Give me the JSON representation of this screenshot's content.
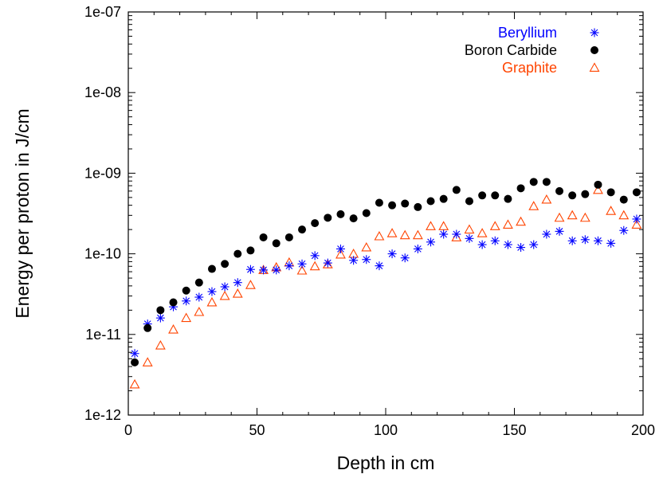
{
  "chart_data": {
    "type": "scatter",
    "title": "",
    "xlabel": "Depth in cm",
    "ylabel": "Energy per proton in J/cm",
    "xlim": [
      0,
      200
    ],
    "ylim": [
      1e-12,
      1e-07
    ],
    "yscale": "log",
    "grid": false,
    "legend_position": "top-right",
    "x_ticks": [
      "0",
      "50",
      "100",
      "150",
      "200"
    ],
    "x_tick_values": [
      0,
      50,
      100,
      150,
      200
    ],
    "y_ticks": [
      "1e-12",
      "1e-11",
      "1e-10",
      "1e-09",
      "1e-08",
      "1e-07"
    ],
    "y_tick_values": [
      1e-12,
      1e-11,
      1e-10,
      1e-09,
      1e-08,
      1e-07
    ],
    "series": [
      {
        "name": "Beryllium",
        "color": "#0000ff",
        "marker": "asterisk",
        "x": [
          2.5,
          7.5,
          12.5,
          17.5,
          22.5,
          27.5,
          32.5,
          37.5,
          42.5,
          47.5,
          52.5,
          57.5,
          62.5,
          67.5,
          72.5,
          77.5,
          82.5,
          87.5,
          92.5,
          97.5,
          102.5,
          107.5,
          112.5,
          117.5,
          122.5,
          127.5,
          132.5,
          137.5,
          142.5,
          147.5,
          152.5,
          157.5,
          162.5,
          167.5,
          172.5,
          177.5,
          182.5,
          187.5,
          192.5,
          197.5
        ],
        "y": [
          5.8e-12,
          1.35e-11,
          1.6e-11,
          2.2e-11,
          2.6e-11,
          2.9e-11,
          3.4e-11,
          3.9e-11,
          4.4e-11,
          6.4e-11,
          6.3e-11,
          6.3e-11,
          7.1e-11,
          7.5e-11,
          9.5e-11,
          7.7e-11,
          1.15e-10,
          8.3e-11,
          8.5e-11,
          7.1e-11,
          1e-10,
          8.9e-11,
          1.15e-10,
          1.4e-10,
          1.75e-10,
          1.75e-10,
          1.55e-10,
          1.3e-10,
          1.45e-10,
          1.3e-10,
          1.2e-10,
          1.3e-10,
          1.75e-10,
          1.9e-10,
          1.45e-10,
          1.5e-10,
          1.45e-10,
          1.35e-10,
          1.95e-10,
          2.7e-10
        ]
      },
      {
        "name": "Boron Carbide",
        "color": "#000000",
        "marker": "filled-circle",
        "x": [
          2.5,
          7.5,
          12.5,
          17.5,
          22.5,
          27.5,
          32.5,
          37.5,
          42.5,
          47.5,
          52.5,
          57.5,
          62.5,
          67.5,
          72.5,
          77.5,
          82.5,
          87.5,
          92.5,
          97.5,
          102.5,
          107.5,
          112.5,
          117.5,
          122.5,
          127.5,
          132.5,
          137.5,
          142.5,
          147.5,
          152.5,
          157.5,
          162.5,
          167.5,
          172.5,
          177.5,
          182.5,
          187.5,
          192.5,
          197.5
        ],
        "y": [
          4.5e-12,
          1.2e-11,
          2e-11,
          2.5e-11,
          3.5e-11,
          4.4e-11,
          6.5e-11,
          7.5e-11,
          1e-10,
          1.1e-10,
          1.6e-10,
          1.35e-10,
          1.6e-10,
          2e-10,
          2.4e-10,
          2.8e-10,
          3.1e-10,
          2.75e-10,
          3.2e-10,
          4.3e-10,
          4e-10,
          4.2e-10,
          3.8e-10,
          4.5e-10,
          4.8e-10,
          6.2e-10,
          4.5e-10,
          5.3e-10,
          5.3e-10,
          4.8e-10,
          6.5e-10,
          7.8e-10,
          7.8e-10,
          6e-10,
          5.3e-10,
          5.5e-10,
          7.2e-10,
          5.8e-10,
          4.7e-10,
          5.8e-10
        ]
      },
      {
        "name": "Graphite",
        "color": "#ff4400",
        "marker": "open-triangle",
        "x": [
          2.5,
          7.5,
          12.5,
          17.5,
          22.5,
          27.5,
          32.5,
          37.5,
          42.5,
          47.5,
          52.5,
          57.5,
          62.5,
          67.5,
          72.5,
          77.5,
          82.5,
          87.5,
          92.5,
          97.5,
          102.5,
          107.5,
          112.5,
          117.5,
          122.5,
          127.5,
          132.5,
          137.5,
          142.5,
          147.5,
          152.5,
          157.5,
          162.5,
          167.5,
          172.5,
          177.5,
          182.5,
          187.5,
          192.5,
          197.5
        ],
        "y": [
          2.4e-12,
          4.5e-12,
          7.3e-12,
          1.15e-11,
          1.6e-11,
          1.9e-11,
          2.5e-11,
          3e-11,
          3.2e-11,
          4.1e-11,
          6.3e-11,
          6.8e-11,
          7.8e-11,
          6.2e-11,
          7e-11,
          7.4e-11,
          9.8e-11,
          1e-10,
          1.2e-10,
          1.65e-10,
          1.8e-10,
          1.7e-10,
          1.7e-10,
          2.2e-10,
          2.2e-10,
          1.6e-10,
          2e-10,
          1.8e-10,
          2.2e-10,
          2.3e-10,
          2.5e-10,
          3.9e-10,
          4.7e-10,
          2.8e-10,
          3e-10,
          2.8e-10,
          6.2e-10,
          3.4e-10,
          3e-10,
          2.3e-10
        ]
      }
    ]
  }
}
